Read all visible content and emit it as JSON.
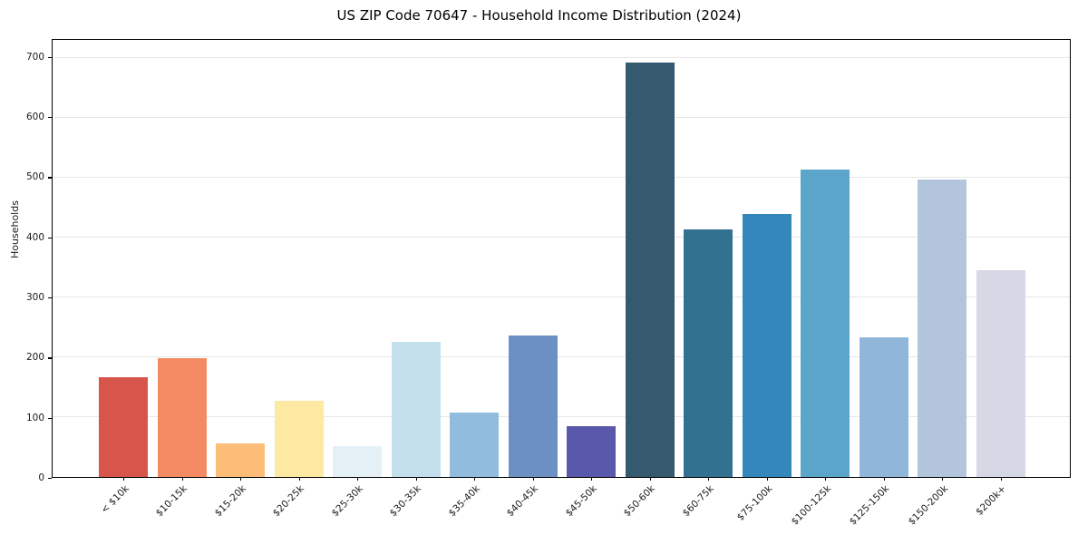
{
  "chart_data": {
    "type": "bar",
    "title": "US ZIP Code 70647 - Household Income Distribution (2024)",
    "xlabel": "",
    "ylabel": "Households",
    "categories": [
      "< $10k",
      "$10-15k",
      "$15-20k",
      "$20-25k",
      "$25-30k",
      "$30-35k",
      "$35-40k",
      "$40-45k",
      "$45-50k",
      "$50-60k",
      "$60-75k",
      "$75-100k",
      "$100-125k",
      "$125-150k",
      "$150-200k",
      "$200k+"
    ],
    "values": [
      167,
      198,
      56,
      128,
      51,
      226,
      107,
      236,
      85,
      692,
      414,
      439,
      514,
      233,
      497,
      346
    ],
    "bar_colors": [
      "#d8554c",
      "#f48a63",
      "#fbbd77",
      "#fde9a2",
      "#e4f0f5",
      "#c3dfec",
      "#92bcdd",
      "#6c90c4",
      "#5a58aa",
      "#35596f",
      "#32718f",
      "#3487ba",
      "#5aa5c9",
      "#90b7d9",
      "#b3c5dd",
      "#d6d8e5"
    ],
    "ylim": [
      0,
      730
    ],
    "yticks": [
      0,
      100,
      200,
      300,
      400,
      500,
      600,
      700
    ],
    "grid": "horizontal",
    "legend": null
  }
}
